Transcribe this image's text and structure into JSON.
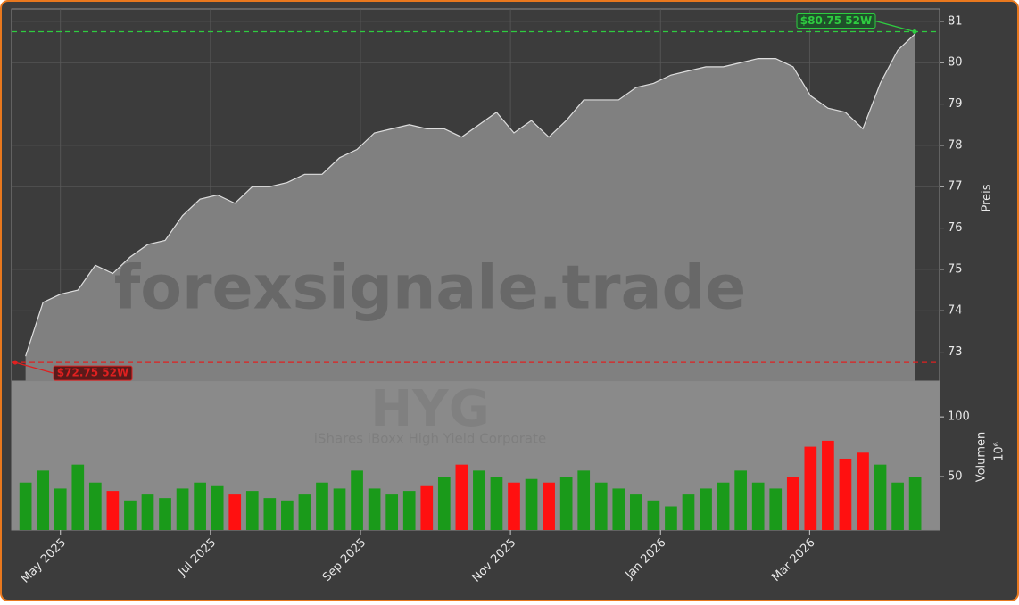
{
  "chart_data": {
    "type": "line",
    "watermark": "forexsignale.trade",
    "ticker": "HYG",
    "fund_name": "iShares iBoxx High Yield Corporate",
    "y_label": "Preis",
    "y2_label": "Volumen",
    "y2_multiplier": "10⁶",
    "x": [
      0,
      1,
      2,
      3,
      4,
      5,
      6,
      7,
      8,
      9,
      10,
      11,
      12,
      13,
      14,
      15,
      16,
      17,
      18,
      19,
      20,
      21,
      22,
      23,
      24,
      25,
      26,
      27,
      28,
      29,
      30,
      31,
      32,
      33,
      34,
      35,
      36,
      37,
      38,
      39,
      40,
      41,
      42,
      43,
      44,
      45,
      46,
      47,
      48,
      49,
      50,
      51
    ],
    "xlim": [
      -0.8,
      52.4
    ],
    "xticks": [
      {
        "value": 2.0,
        "label": "May 2025"
      },
      {
        "value": 10.6,
        "label": "Jul 2025"
      },
      {
        "value": 19.2,
        "label": "Sep 2025"
      },
      {
        "value": 27.8,
        "label": "Nov 2025"
      },
      {
        "value": 36.4,
        "label": "Jan 2026"
      },
      {
        "value": 44.95,
        "label": "Mar 2026"
      }
    ],
    "series": [
      {
        "name": "Preis",
        "color": "#dddddd",
        "fill": "#808080",
        "values": [
          72.9,
          74.2,
          74.4,
          74.5,
          75.1,
          74.9,
          75.3,
          75.6,
          75.7,
          76.3,
          76.7,
          76.8,
          76.6,
          77.0,
          77.0,
          77.1,
          77.3,
          77.3,
          77.7,
          77.9,
          78.3,
          78.4,
          78.5,
          78.4,
          78.4,
          78.2,
          78.5,
          78.8,
          78.3,
          78.6,
          78.2,
          78.6,
          79.1,
          79.1,
          79.1,
          79.4,
          79.5,
          79.7,
          79.8,
          79.9,
          79.9,
          80.0,
          80.1,
          80.1,
          79.9,
          79.2,
          78.9,
          78.8,
          78.4,
          79.5,
          80.3,
          80.7
        ]
      },
      {
        "name": "Volumen",
        "axis": "y2",
        "up_color": "#1a9a1a",
        "down_color": "#ff1010",
        "values": [
          45,
          55,
          40,
          60,
          45,
          38,
          30,
          35,
          32,
          40,
          45,
          42,
          35,
          38,
          32,
          30,
          35,
          45,
          40,
          55,
          40,
          35,
          38,
          42,
          50,
          60,
          55,
          50,
          45,
          48,
          45,
          50,
          55,
          45,
          40,
          35,
          30,
          25,
          35,
          40,
          45,
          55,
          45,
          40,
          50,
          75,
          80,
          65,
          70,
          60,
          45,
          50
        ]
      }
    ],
    "ylim": [
      72.3,
      81.3
    ],
    "yticks": [
      73.0,
      74.0,
      75.0,
      76.0,
      77.0,
      78.0,
      79.0,
      80.0,
      81.0
    ],
    "y2lim": [
      5.2,
      130
    ],
    "y2ticks": [
      50,
      100
    ],
    "high": {
      "value": 80.75,
      "label": "$80.75 52W",
      "color": "#2ecc40"
    },
    "low": {
      "value": 72.75,
      "label": "$72.75 52W",
      "color": "#e02020"
    },
    "grid": true
  }
}
